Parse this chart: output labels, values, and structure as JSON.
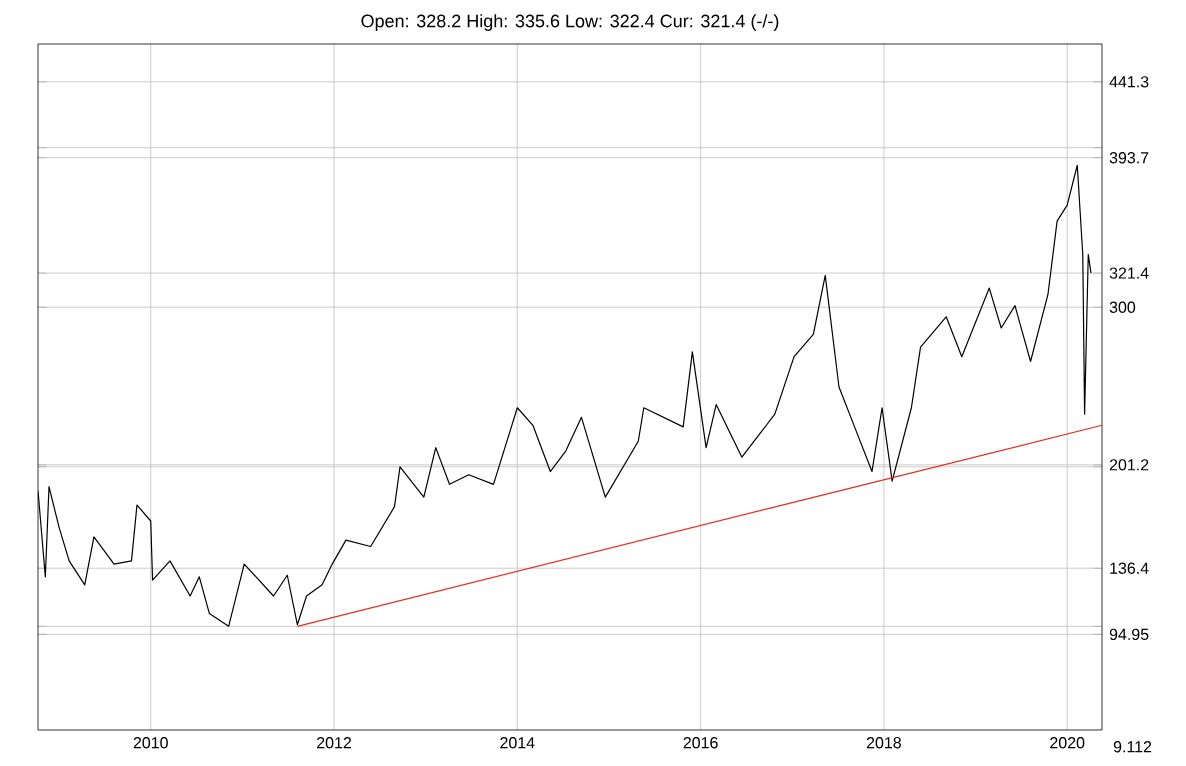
{
  "chart_data": {
    "type": "line",
    "subtitle": "Open: 328.2 High: 335.6 Low: 322.4 Cur: 321.4 (-/-)",
    "xlim": [
      2008.77,
      2020.38
    ],
    "ylim": [
      35,
      465
    ],
    "xticks": [
      2010,
      2012,
      2014,
      2016,
      2018,
      2020
    ],
    "yticks": [
      {
        "value": 94.95,
        "label": "94.95"
      },
      {
        "value": 100,
        "label": null
      },
      {
        "value": 136.4,
        "label": "136.4"
      },
      {
        "value": 200,
        "label": null
      },
      {
        "value": 201.2,
        "label": "201.2"
      },
      300,
      {
        "value": 321.4,
        "label": "321.4"
      },
      {
        "value": 393.7,
        "label": "393.7"
      },
      {
        "value": 400,
        "label": null
      },
      {
        "value": 441.3,
        "label": "441.3"
      }
    ],
    "grid": true,
    "annotations": [
      "9.112"
    ],
    "series": [
      {
        "color": "#000000",
        "x": [
          2008.77,
          2008.85,
          2008.89,
          2009.0,
          2009.11,
          2009.28,
          2009.38,
          2009.6,
          2009.79,
          2009.85,
          2010.0,
          2010.02,
          2010.21,
          2010.43,
          2010.53,
          2010.64,
          2010.85,
          2011.02,
          2011.34,
          2011.49,
          2011.6,
          2011.7,
          2011.87,
          2011.98,
          2012.13,
          2012.4,
          2012.66,
          2012.72,
          2012.98,
          2013.11,
          2013.26,
          2013.47,
          2013.74,
          2014.0,
          2014.17,
          2014.36,
          2014.53,
          2014.7,
          2014.96,
          2015.32,
          2015.38,
          2015.81,
          2015.91,
          2016.06,
          2016.17,
          2016.45,
          2016.81,
          2017.02,
          2017.23,
          2017.36,
          2017.51,
          2017.68,
          2017.87,
          2017.98,
          2018.09,
          2018.3,
          2018.4,
          2018.68,
          2018.85,
          2019.15,
          2019.28,
          2019.43,
          2019.6,
          2019.79,
          2019.89,
          2020.0,
          2020.11,
          2020.17,
          2020.19,
          2020.23,
          2020.26
        ],
        "values": [
          185,
          131,
          187.5,
          162,
          141,
          126,
          156,
          139,
          141,
          176,
          166,
          129,
          141,
          119,
          131,
          108,
          100,
          139,
          119,
          132,
          101,
          119,
          126,
          139,
          154,
          150,
          175,
          200,
          181,
          212,
          189,
          195,
          189,
          237,
          226,
          197,
          210,
          231,
          181,
          216,
          237,
          225,
          272,
          212,
          239,
          206,
          233,
          269,
          283,
          320,
          250,
          225,
          197,
          237,
          191,
          237,
          275,
          294,
          269,
          312,
          287,
          301,
          266,
          308,
          354,
          364,
          389,
          333,
          233,
          333,
          321.4
        ]
      },
      {
        "color": "#e03020",
        "x": [
          2011.6,
          2020.38
        ],
        "values": [
          100,
          226
        ]
      }
    ]
  }
}
